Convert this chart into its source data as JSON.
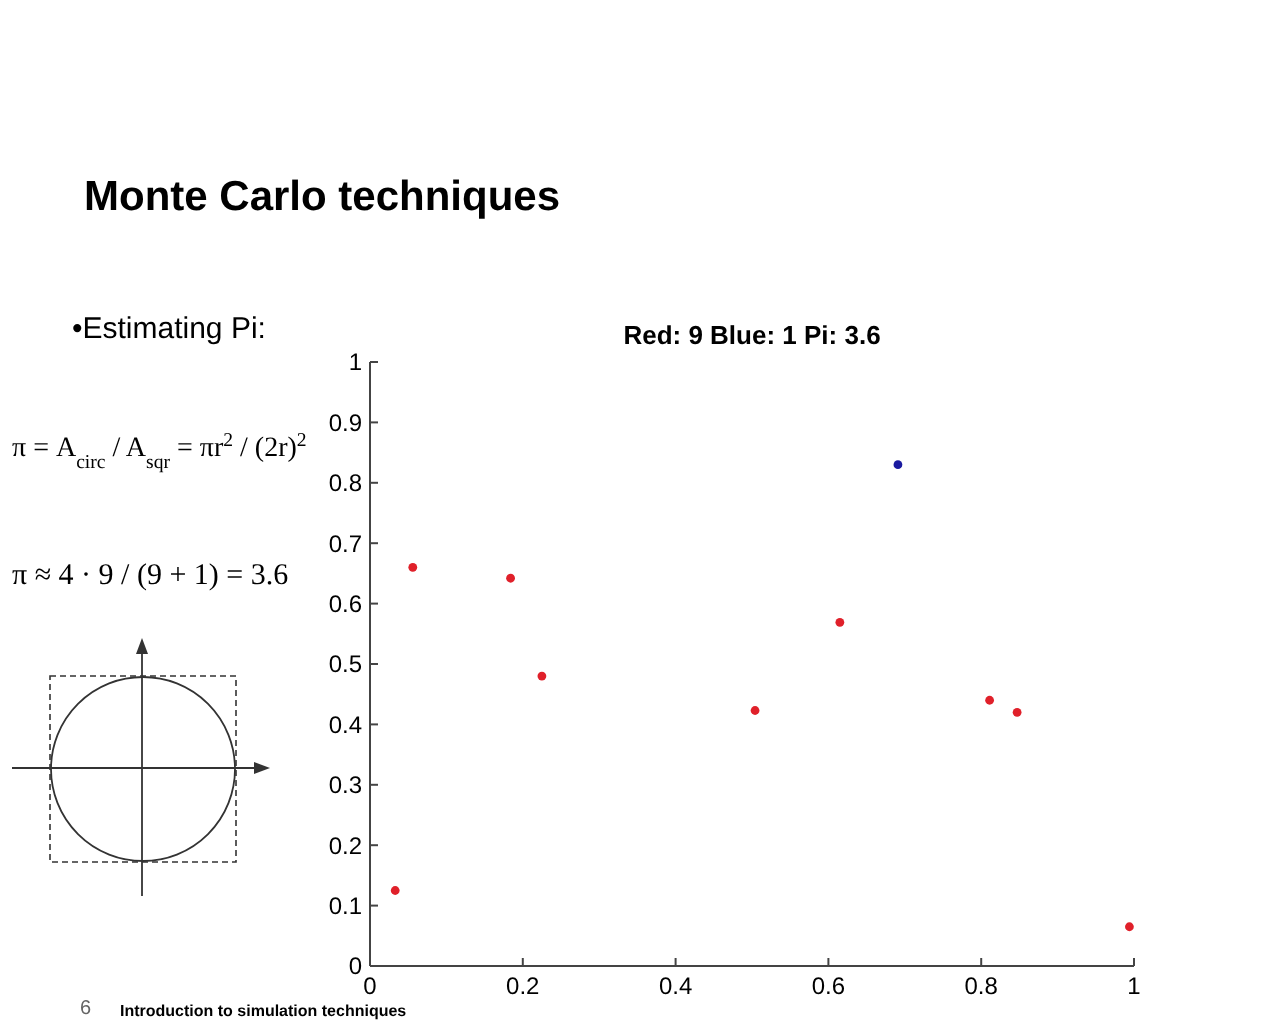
{
  "chart_data": {
    "type": "scatter",
    "title": "Red: 9 Blue: 1 Pi: 3.6",
    "annotations": [
      "Monte Carlo techniques",
      "•Estimating Pi:",
      "π = A$_{circ}$ / A$_{sqr}$ = πr$^{2}$ / (2r)$^{2}$",
      "π ≈ 4 · 9 / (9 + 1) = 3.6",
      "Introduction to simulation techniques",
      "6"
    ],
    "series": [
      {
        "color": "#e0202a",
        "x": [
          0.033,
          0.056,
          0.184,
          0.225,
          0.504,
          0.615,
          0.811,
          0.847,
          0.994
        ],
        "values": [
          0.125,
          0.66,
          0.642,
          0.48,
          0.423,
          0.569,
          0.44,
          0.42,
          0.065
        ]
      },
      {
        "color": "#1a1aa0",
        "x": [
          0.691
        ],
        "values": [
          0.83
        ]
      }
    ],
    "marker": "circle",
    "xlim": [
      0,
      1
    ],
    "xticks": [
      0,
      0.2,
      0.4,
      0.6,
      0.8,
      1
    ],
    "ylim": [
      0,
      1
    ],
    "yticks": [
      0,
      0.1,
      0.2,
      0.3,
      0.4,
      0.5,
      0.6,
      0.7,
      0.8,
      0.9,
      1
    ],
    "grid": false
  }
}
